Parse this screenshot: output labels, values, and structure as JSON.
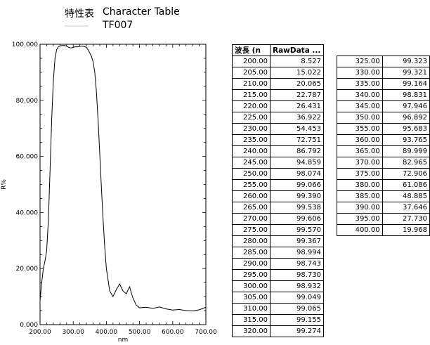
{
  "header": {
    "label": "特性表",
    "title": "Character Table",
    "code": "TF007"
  },
  "chart_data": {
    "type": "line",
    "xlabel": "nm",
    "ylabel": "R%",
    "xlim": [
      200,
      700
    ],
    "ylim": [
      0,
      100
    ],
    "x_ticks": [
      "200.00",
      "300.00",
      "400.00",
      "500.00",
      "600.00",
      "700.00"
    ],
    "y_ticks": [
      "0.000",
      "20.000",
      "40.000",
      "60.000",
      "80.000",
      "100.000"
    ],
    "grid": false,
    "series": [
      {
        "color": "#000000",
        "x": [
          200,
          205,
          210,
          215,
          220,
          225,
          230,
          235,
          240,
          245,
          250,
          255,
          260,
          265,
          270,
          275,
          280,
          285,
          290,
          295,
          300,
          305,
          310,
          315,
          320,
          325,
          330,
          335,
          340,
          345,
          350,
          355,
          360,
          365,
          370,
          375,
          380,
          385,
          390,
          395,
          400,
          410,
          420,
          430,
          440,
          450,
          460,
          470,
          480,
          490,
          500,
          520,
          540,
          560,
          580,
          600,
          620,
          640,
          660,
          680,
          700
        ],
        "y": [
          8.527,
          15.022,
          20.065,
          22.787,
          26.431,
          36.922,
          54.453,
          72.751,
          86.792,
          94.859,
          98.074,
          99.066,
          99.39,
          99.538,
          99.606,
          99.57,
          99.367,
          98.994,
          98.743,
          98.73,
          98.932,
          99.049,
          99.065,
          99.155,
          99.274,
          99.323,
          99.321,
          99.164,
          98.831,
          97.946,
          96.892,
          95.683,
          93.765,
          89.999,
          82.965,
          72.906,
          61.086,
          48.885,
          37.646,
          27.73,
          19.968,
          12.0,
          10.0,
          12.5,
          14.5,
          12.0,
          11.0,
          13.5,
          9.5,
          7.0,
          6.0,
          6.2,
          5.8,
          6.3,
          5.6,
          5.2,
          5.4,
          5.0,
          4.9,
          5.3,
          6.2
        ]
      }
    ]
  },
  "table_headers": {
    "wavelength": "波長 (n",
    "rawdata": "RawData ..."
  },
  "table_left": [
    [
      "200.00",
      "8.527"
    ],
    [
      "205.00",
      "15.022"
    ],
    [
      "210.00",
      "20.065"
    ],
    [
      "215.00",
      "22.787"
    ],
    [
      "220.00",
      "26.431"
    ],
    [
      "225.00",
      "36.922"
    ],
    [
      "230.00",
      "54.453"
    ],
    [
      "235.00",
      "72.751"
    ],
    [
      "240.00",
      "86.792"
    ],
    [
      "245.00",
      "94.859"
    ],
    [
      "250.00",
      "98.074"
    ],
    [
      "255.00",
      "99.066"
    ],
    [
      "260.00",
      "99.390"
    ],
    [
      "265.00",
      "99.538"
    ],
    [
      "270.00",
      "99.606"
    ],
    [
      "275.00",
      "99.570"
    ],
    [
      "280.00",
      "99.367"
    ],
    [
      "285.00",
      "98.994"
    ],
    [
      "290.00",
      "98.743"
    ],
    [
      "295.00",
      "98.730"
    ],
    [
      "300.00",
      "98.932"
    ],
    [
      "305.00",
      "99.049"
    ],
    [
      "310.00",
      "99.065"
    ],
    [
      "315.00",
      "99.155"
    ],
    [
      "320.00",
      "99.274"
    ]
  ],
  "table_right": [
    [
      "325.00",
      "99.323"
    ],
    [
      "330.00",
      "99.321"
    ],
    [
      "335.00",
      "99.164"
    ],
    [
      "340.00",
      "98.831"
    ],
    [
      "345.00",
      "97.946"
    ],
    [
      "350.00",
      "96.892"
    ],
    [
      "355.00",
      "95.683"
    ],
    [
      "360.00",
      "93.765"
    ],
    [
      "365.00",
      "89.999"
    ],
    [
      "370.00",
      "82.965"
    ],
    [
      "375.00",
      "72.906"
    ],
    [
      "380.00",
      "61.086"
    ],
    [
      "385.00",
      "48.885"
    ],
    [
      "390.00",
      "37.646"
    ],
    [
      "395.00",
      "27.730"
    ],
    [
      "400.00",
      "19.968"
    ]
  ]
}
